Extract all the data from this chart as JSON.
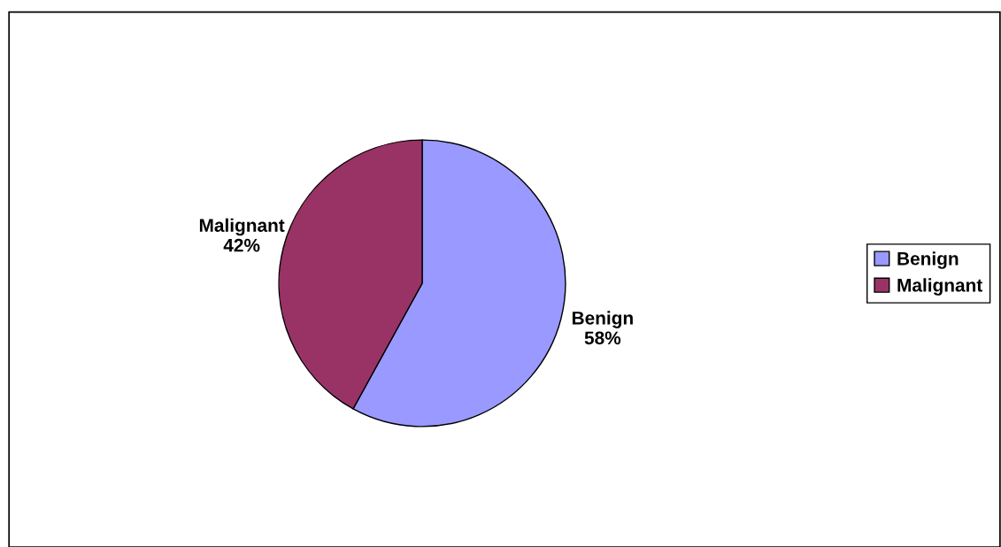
{
  "chart_data": {
    "type": "pie",
    "categories": [
      "Benign",
      "Malignant"
    ],
    "values": [
      58,
      42
    ],
    "colors": [
      "#9999ff",
      "#993366"
    ],
    "value_labels": [
      "Benign\n58%",
      "Malignant\n42%"
    ],
    "legend": "right"
  }
}
